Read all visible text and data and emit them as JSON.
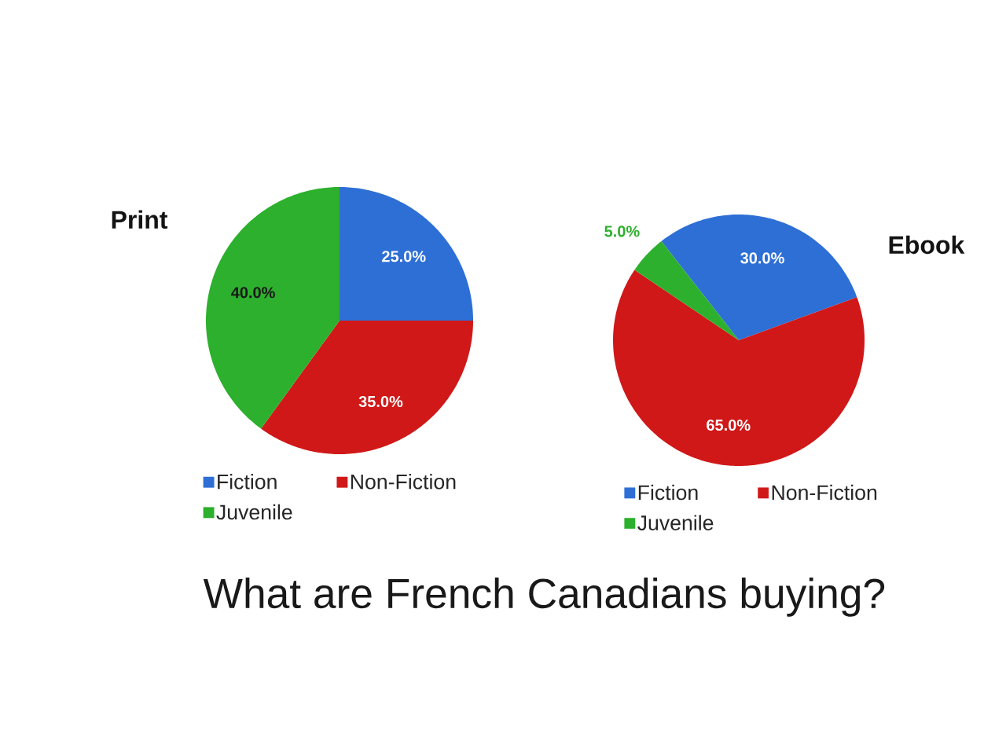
{
  "chart_data": [
    {
      "type": "pie",
      "title": "Print",
      "categories": [
        "Fiction",
        "Non-Fiction",
        "Juvenile"
      ],
      "values": [
        25,
        35,
        40
      ],
      "colors": [
        "#2e6fd6",
        "#d01818",
        "#2db02d"
      ],
      "value_labels": [
        "25.0%",
        "35.0%",
        "40.0%"
      ],
      "legend": "bottom",
      "annotations": [
        "What are French Canadians buying?"
      ]
    },
    {
      "type": "pie",
      "title": "Ebook",
      "categories": [
        "Fiction",
        "Non-Fiction",
        "Juvenile"
      ],
      "values": [
        30,
        65,
        5
      ],
      "colors": [
        "#2e6fd6",
        "#d01818",
        "#2db02d"
      ],
      "value_labels": [
        "30.0%",
        "65.0%",
        "5.0%"
      ],
      "legend": "bottom"
    }
  ]
}
